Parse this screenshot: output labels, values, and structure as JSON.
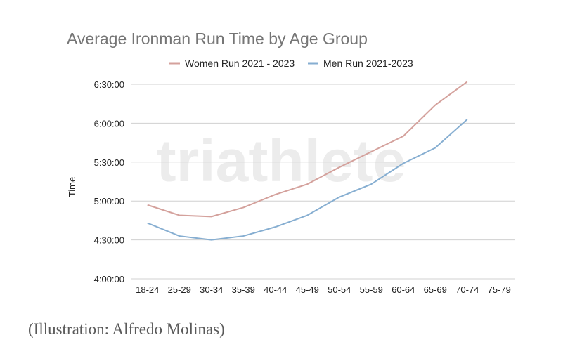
{
  "chart_data": {
    "type": "line",
    "title": "Average Ironman Run Time by Age Group",
    "xlabel": "",
    "ylabel": "Time",
    "categories": [
      "18-24",
      "25-29",
      "30-34",
      "35-39",
      "40-44",
      "45-49",
      "50-54",
      "55-59",
      "60-64",
      "65-69",
      "70-74",
      "75-79"
    ],
    "ylim": [
      "4:00:00",
      "6:30:00"
    ],
    "yticks": [
      "4:00:00",
      "4:30:00",
      "5:00:00",
      "5:30:00",
      "6:00:00",
      "6:30:00"
    ],
    "ytick_minutes": [
      240,
      270,
      300,
      330,
      360,
      390
    ],
    "grid": true,
    "legend_position": "top",
    "series": [
      {
        "name": "Women Run 2021 - 2023",
        "color": "#d4a19c",
        "values_minutes": [
          297,
          289,
          288,
          295,
          305,
          313,
          326,
          338,
          350,
          374,
          392,
          null
        ]
      },
      {
        "name": "Men Run 2021-2023",
        "color": "#86aed1",
        "values_minutes": [
          283,
          273,
          270,
          273,
          280,
          289,
          303,
          313,
          329,
          341,
          363,
          null
        ]
      }
    ]
  },
  "watermark": "triathlete",
  "caption": "(Illustration: Alfredo Molinas)"
}
